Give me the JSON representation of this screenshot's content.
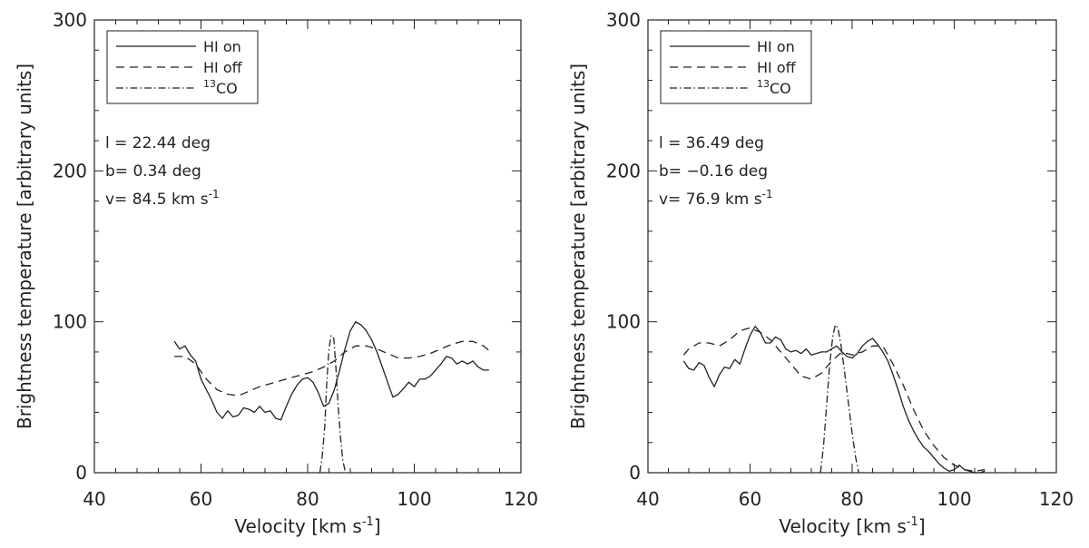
{
  "chart_data": [
    {
      "type": "line",
      "xlabel": "Velocity [km s",
      "xlabel_sup": "-1",
      "xlabel_end": "]",
      "ylabel": "Brightness temperature [arbitrary units]",
      "xlim": [
        40,
        120
      ],
      "ylim": [
        0,
        300
      ],
      "xticks": [
        "40",
        "60",
        "80",
        "100",
        "120"
      ],
      "yticks": [
        "0",
        "100",
        "200",
        "300"
      ],
      "legend": {
        "position": "top-left",
        "entries": [
          {
            "label": "HI on",
            "style": "solid"
          },
          {
            "label": "HI off",
            "style": "dashed"
          },
          {
            "label_sup": "13",
            "label": "CO",
            "style": "dashdot"
          }
        ]
      },
      "annotations": {
        "l": "l = 22.44 deg",
        "b": "b= 0.34 deg",
        "v": "v= 84.5 km s",
        "v_sup": "-1"
      },
      "series": [
        {
          "style": "solid",
          "x": [
            55,
            56,
            57,
            58,
            59,
            60,
            61,
            62,
            63,
            64,
            65,
            66,
            67,
            68,
            69,
            70,
            71,
            72,
            73,
            74,
            75,
            76,
            77,
            78,
            79,
            80,
            81,
            82,
            83,
            84,
            85,
            86,
            87,
            88,
            89,
            90,
            91,
            92,
            93,
            94,
            95,
            96,
            97,
            98,
            99,
            100,
            101,
            102,
            103,
            104,
            105,
            106,
            107,
            108,
            109,
            110,
            111,
            112,
            113,
            114
          ],
          "y": [
            87,
            82,
            84,
            78,
            74,
            62,
            55,
            48,
            40,
            36,
            41,
            37,
            38,
            43,
            42,
            40,
            44,
            40,
            41,
            36,
            35,
            44,
            52,
            58,
            62,
            63,
            60,
            53,
            44,
            46,
            55,
            68,
            82,
            94,
            100,
            98,
            94,
            88,
            80,
            70,
            60,
            50,
            52,
            56,
            60,
            57,
            62,
            62,
            64,
            68,
            72,
            77,
            76,
            72,
            74,
            72,
            74,
            70,
            68,
            68
          ]
        },
        {
          "style": "dashed",
          "x": [
            55,
            57,
            59,
            61,
            63,
            65,
            67,
            69,
            71,
            73,
            75,
            77,
            79,
            81,
            83,
            85,
            87,
            89,
            91,
            93,
            95,
            97,
            99,
            101,
            103,
            105,
            107,
            109,
            111,
            113,
            114
          ],
          "y": [
            77,
            77,
            72,
            62,
            55,
            52,
            51,
            54,
            57,
            59,
            61,
            63,
            65,
            67,
            70,
            74,
            80,
            84,
            84,
            82,
            79,
            76,
            76,
            77,
            79,
            82,
            85,
            87,
            87,
            84,
            81
          ]
        },
        {
          "style": "dashdot",
          "x": [
            82.3,
            82.7,
            83.2,
            83.6,
            84.0,
            84.4,
            84.9,
            85.3,
            85.7,
            86.2,
            86.6,
            87.1
          ],
          "y": [
            0,
            10,
            30,
            60,
            82,
            91,
            89,
            70,
            45,
            22,
            8,
            0
          ]
        }
      ]
    },
    {
      "type": "line",
      "xlabel": "Velocity [km s",
      "xlabel_sup": "-1",
      "xlabel_end": "]",
      "ylabel": "Brightness temperature [arbitrary units]",
      "xlim": [
        40,
        120
      ],
      "ylim": [
        0,
        300
      ],
      "xticks": [
        "40",
        "60",
        "80",
        "100",
        "120"
      ],
      "yticks": [
        "0",
        "100",
        "200",
        "300"
      ],
      "legend": {
        "position": "top-left",
        "entries": [
          {
            "label": "HI on",
            "style": "solid"
          },
          {
            "label": "HI off",
            "style": "dashed"
          },
          {
            "label_sup": "13",
            "label": "CO",
            "style": "dashdot"
          }
        ]
      },
      "annotations": {
        "l": "l = 36.49 deg",
        "b": "b= −0.16 deg",
        "v": "v= 76.9 km s",
        "v_sup": "-1"
      },
      "series": [
        {
          "style": "solid",
          "x": [
            47,
            48,
            49,
            50,
            51,
            52,
            53,
            54,
            55,
            56,
            57,
            58,
            59,
            60,
            61,
            62,
            63,
            64,
            65,
            66,
            67,
            68,
            69,
            70,
            71,
            72,
            73,
            74,
            75,
            76,
            77,
            78,
            79,
            80,
            81,
            82,
            83,
            84,
            85,
            86,
            87,
            88,
            89,
            90,
            91,
            92,
            93,
            94,
            95,
            96,
            97,
            98,
            99,
            100,
            101,
            102,
            103,
            104,
            105,
            106
          ],
          "y": [
            74,
            69,
            68,
            73,
            71,
            63,
            57,
            65,
            70,
            69,
            75,
            72,
            82,
            91,
            97,
            93,
            86,
            86,
            90,
            88,
            82,
            80,
            81,
            79,
            82,
            78,
            79,
            80,
            80,
            82,
            84,
            80,
            77,
            76,
            79,
            84,
            87,
            89,
            85,
            80,
            74,
            65,
            55,
            44,
            35,
            28,
            22,
            17,
            14,
            10,
            6,
            3,
            1,
            2,
            5,
            2,
            1,
            0,
            0,
            1
          ]
        },
        {
          "style": "dashed",
          "x": [
            47,
            48,
            50,
            52,
            54,
            56,
            58,
            60,
            62,
            64,
            66,
            68,
            70,
            72,
            74,
            76,
            78,
            80,
            82,
            84,
            86,
            88,
            90,
            92,
            94,
            96,
            98,
            100,
            102,
            104,
            106
          ],
          "y": [
            78,
            82,
            86,
            86,
            84,
            88,
            94,
            96,
            93,
            88,
            80,
            72,
            64,
            62,
            66,
            74,
            80,
            78,
            80,
            84,
            84,
            72,
            58,
            42,
            28,
            18,
            10,
            5,
            2,
            1,
            2
          ]
        },
        {
          "style": "dashdot",
          "x": [
            73.8,
            74.4,
            75.0,
            75.6,
            76.2,
            76.7,
            77.2,
            77.8,
            78.4,
            79.2,
            80.0,
            80.7,
            81.3
          ],
          "y": [
            0,
            18,
            45,
            72,
            90,
            98,
            96,
            85,
            70,
            48,
            26,
            10,
            0
          ]
        }
      ]
    }
  ]
}
